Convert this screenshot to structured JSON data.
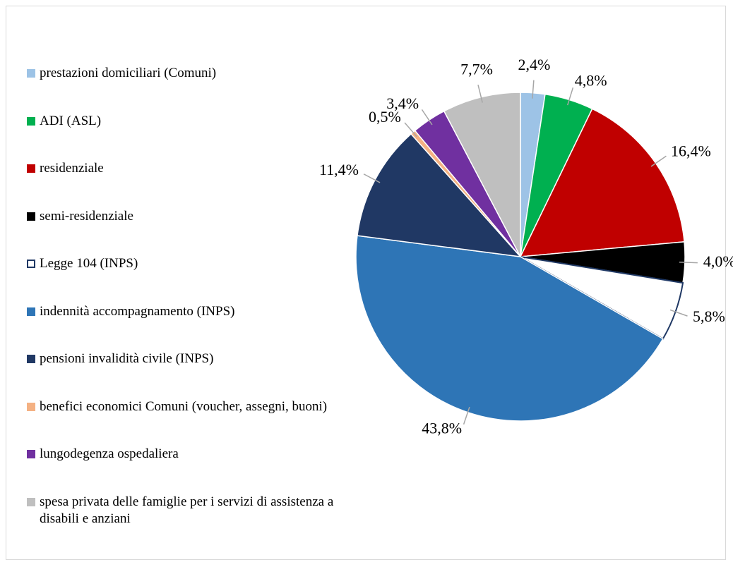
{
  "chart_data": {
    "type": "pie",
    "categories": [
      "prestazioni domiciliari (Comuni)",
      "ADI  (ASL)",
      "residenziale",
      "semi-residenziale",
      "Legge 104 (INPS)",
      "indennità accompagnamento (INPS)",
      "pensioni invalidità civile (INPS)",
      "benefici economici Comuni (voucher, assegni, buoni)",
      "lungodegenza ospedaliera",
      "spesa privata delle famiglie per i servizi di assistenza a disabili e anziani"
    ],
    "values": [
      2.4,
      4.8,
      16.4,
      4.0,
      5.8,
      43.8,
      11.4,
      0.5,
      3.4,
      7.7
    ],
    "value_labels": [
      "2,4%",
      "4,8%",
      "16,4%",
      "4,0%",
      "5,8%",
      "43,8%",
      "11,4%",
      "0,5%",
      "3,4%",
      "7,7%"
    ],
    "colors": [
      "#9dc3e6",
      "#00b050",
      "#c00000",
      "#000000",
      "#ffffff",
      "#2e75b6",
      "#203864",
      "#f4b183",
      "#7030a0",
      "#bfbfbf"
    ],
    "legend": "left"
  }
}
